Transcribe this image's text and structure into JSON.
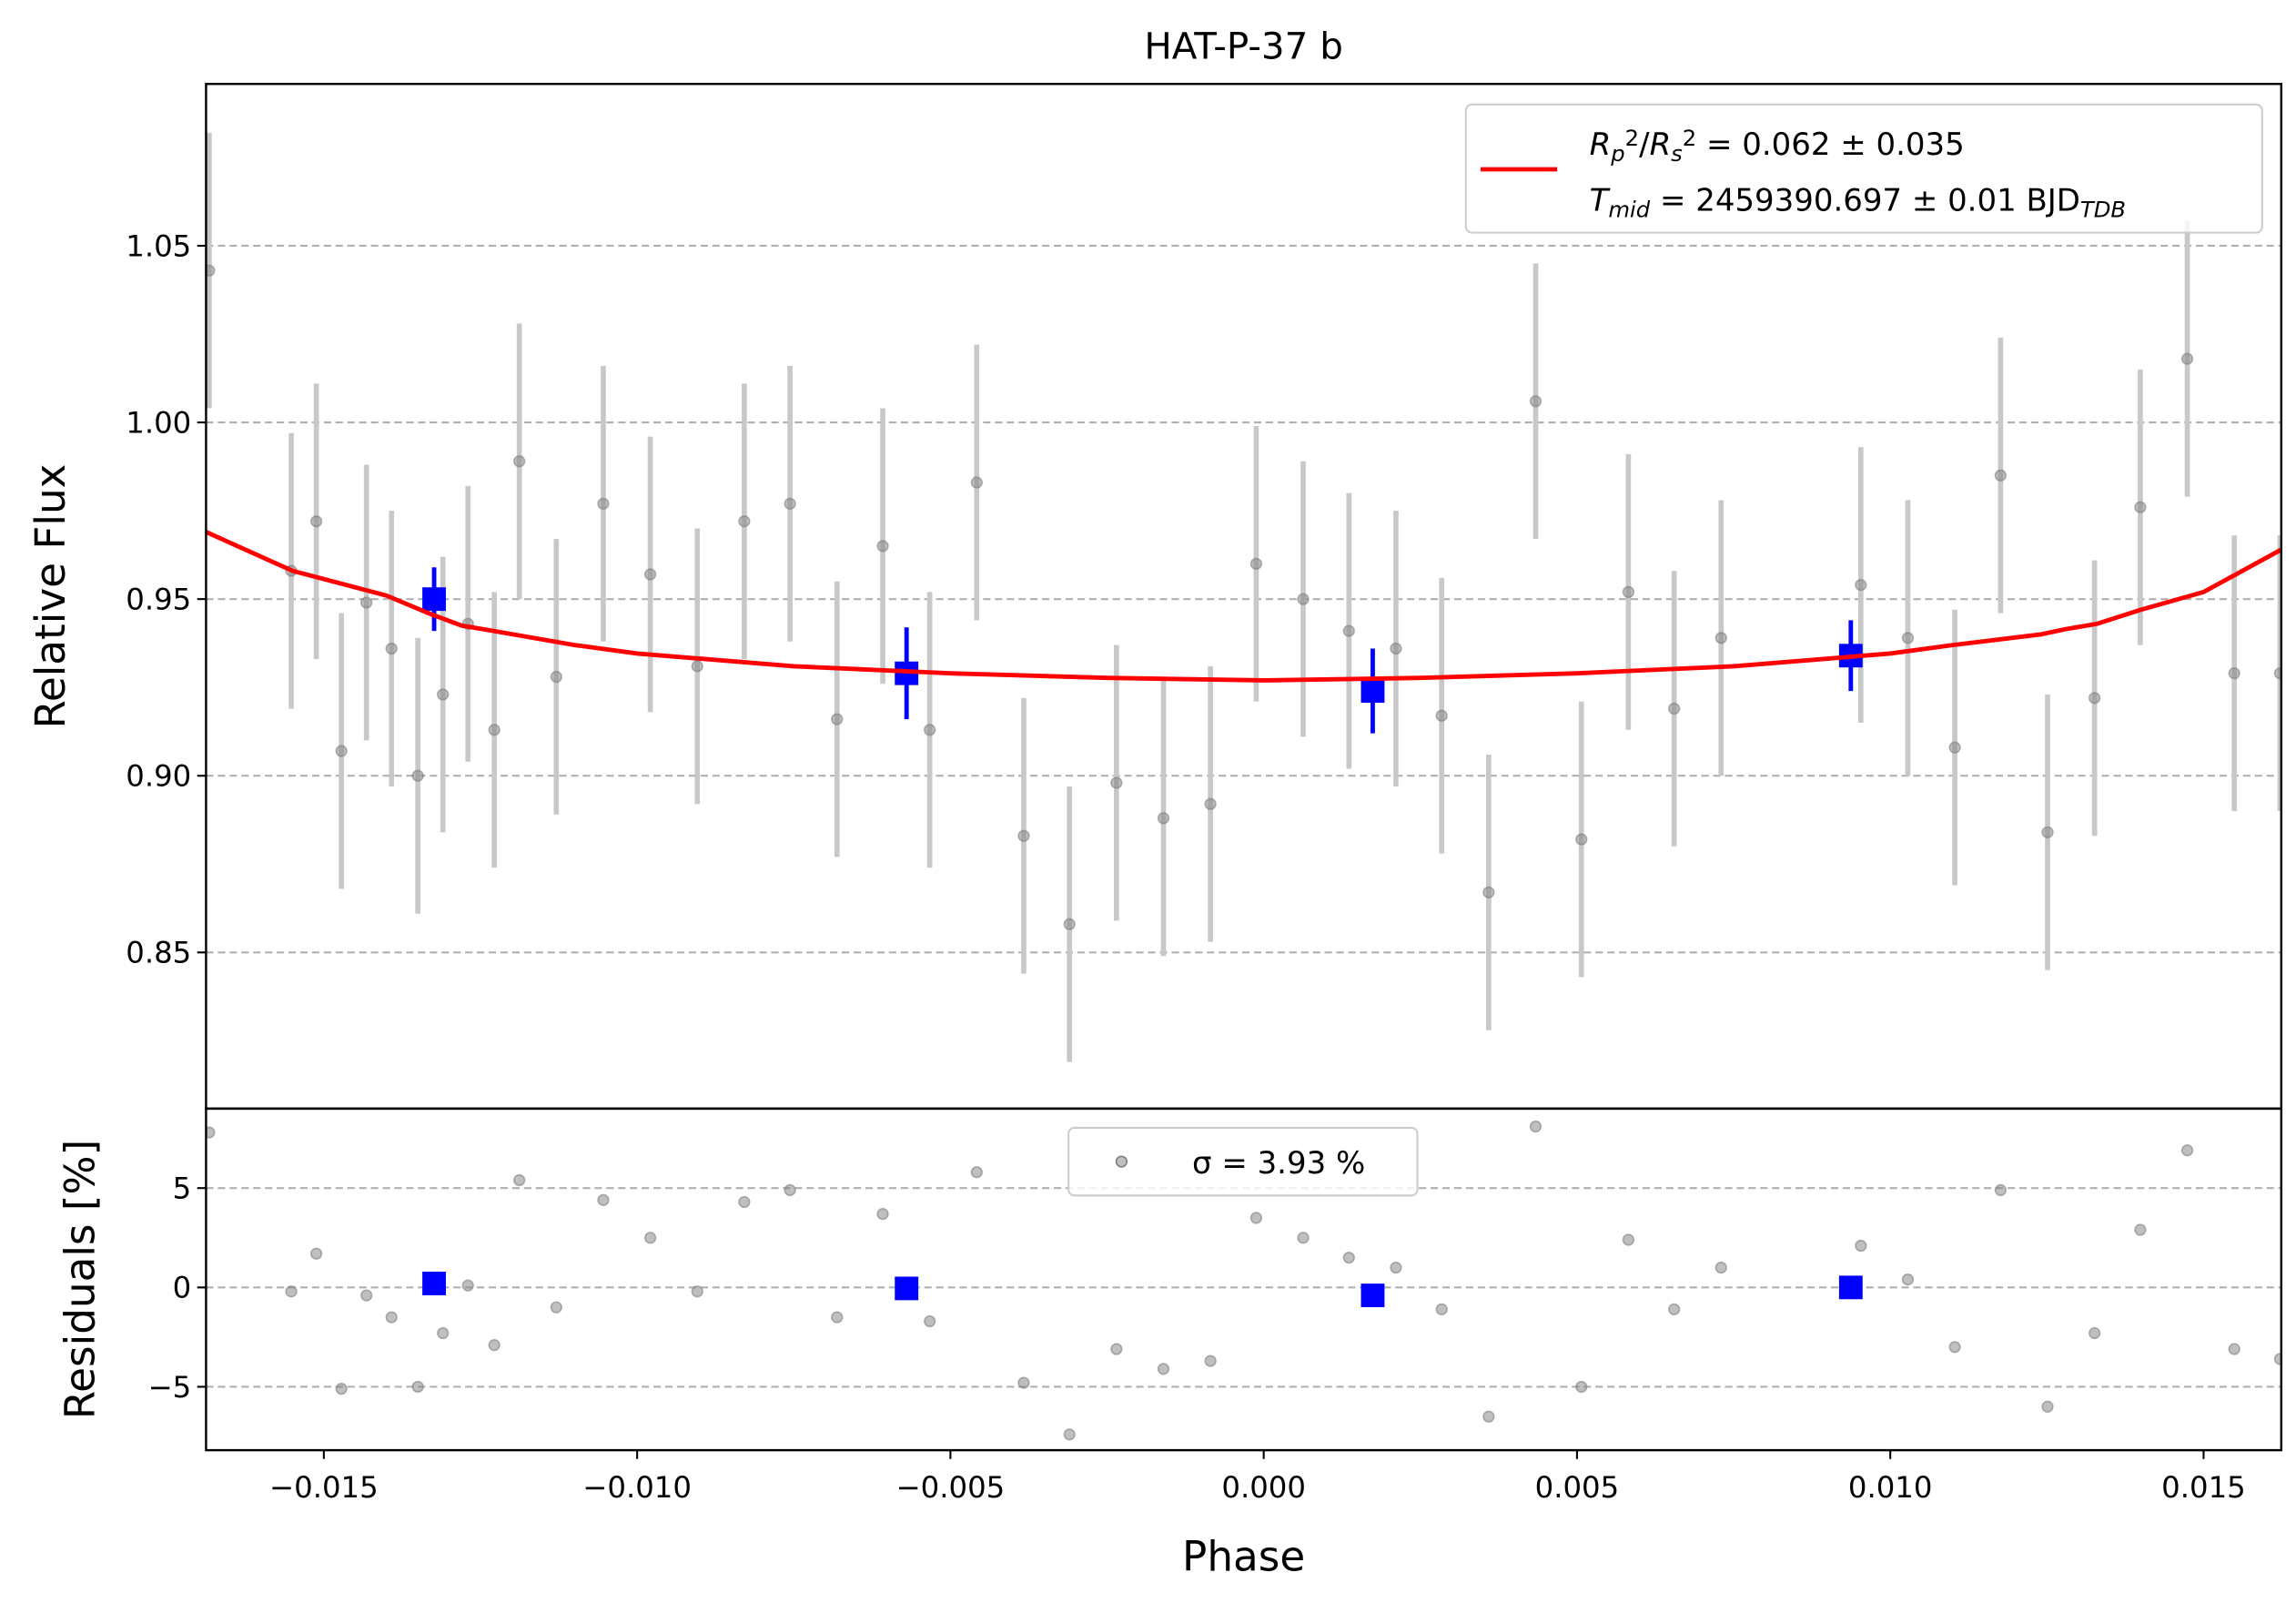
{
  "chart_data": [
    {
      "type": "scatter",
      "title": "HAT-P-37 b",
      "ylabel": "Relative Flux",
      "xlim": [
        -0.01688,
        0.01624
      ],
      "ylim": [
        0.8058,
        1.0958
      ],
      "yticks": [
        {
          "value": 0.85,
          "label": "0.85"
        },
        {
          "value": 0.9,
          "label": "0.90"
        },
        {
          "value": 0.95,
          "label": "0.95"
        },
        {
          "value": 1.0,
          "label": "1.00"
        },
        {
          "value": 1.05,
          "label": "1.05"
        }
      ],
      "grid": true,
      "legend": "upper right",
      "series": [
        {
          "color": "#808080",
          "x": [
            -0.01683,
            -0.01552,
            -0.01512,
            -0.01472,
            -0.01432,
            -0.01392,
            -0.0135,
            -0.0131,
            -0.0127,
            -0.01228,
            -0.01188,
            -0.01129,
            -0.01054,
            -0.00979,
            -0.00904,
            -0.00829,
            -0.00756,
            -0.00681,
            -0.00608,
            -0.00533,
            -0.00458,
            -0.00383,
            -0.0031,
            -0.00235,
            -0.0016,
            -0.00085,
            -0.00012,
            0.00063,
            0.00136,
            0.00211,
            0.00284,
            0.00359,
            0.00434,
            0.00507,
            0.00582,
            0.00655,
            0.0073,
            0.00953,
            0.01028,
            0.01103,
            0.01176,
            0.01251,
            0.01326,
            0.01399,
            0.01474,
            0.01549,
            0.01622
          ],
          "values": [
            1.043,
            0.958,
            0.972,
            0.907,
            0.949,
            0.936,
            0.9,
            0.923,
            0.943,
            0.913,
            0.989,
            0.928,
            0.977,
            0.957,
            0.931,
            0.972,
            0.977,
            0.916,
            0.965,
            0.913,
            0.983,
            0.883,
            0.858,
            0.898,
            0.888,
            0.892,
            0.96,
            0.95,
            0.941,
            0.936,
            0.917,
            0.867,
            1.006,
            0.882,
            0.952,
            0.919,
            0.939,
            0.954,
            0.939,
            0.908,
            0.985,
            0.884,
            0.922,
            0.976,
            1.018,
            0.929,
            0.929
          ],
          "errors": [
            0.039,
            0.039,
            0.039,
            0.039,
            0.039,
            0.039,
            0.039,
            0.039,
            0.039,
            0.039,
            0.039,
            0.039,
            0.039,
            0.039,
            0.039,
            0.039,
            0.039,
            0.039,
            0.039,
            0.039,
            0.039,
            0.039,
            0.039,
            0.039,
            0.039,
            0.039,
            0.039,
            0.039,
            0.039,
            0.039,
            0.039,
            0.039,
            0.039,
            0.039,
            0.039,
            0.039,
            0.039,
            0.039,
            0.039,
            0.039,
            0.039,
            0.039,
            0.039,
            0.039,
            0.039,
            0.039,
            0.039
          ]
        },
        {
          "color": "#0000ff",
          "x": [
            -0.01324,
            -0.0057,
            0.00174,
            0.00937
          ],
          "values": [
            0.95,
            0.929,
            0.924,
            0.934
          ],
          "errors": [
            0.009,
            0.013,
            0.012,
            0.01
          ]
        },
        {
          "type": "line",
          "color": "#ff0000",
          "name": [
            [
              {
                "text": "R",
                "style": "italic"
              },
              {
                "text": "p",
                "style": "sub"
              },
              {
                "text": "2",
                "style": "sup"
              },
              {
                "text": "/",
                "style": ""
              },
              {
                "text": "R",
                "style": "italic"
              },
              {
                "text": "s",
                "style": "sub"
              },
              {
                "text": "2",
                "style": "sup"
              },
              {
                "text": " = 0.062 ± 0.035",
                "style": ""
              }
            ],
            [
              {
                "text": "T",
                "style": "italic"
              },
              {
                "text": "mid",
                "style": "sub"
              },
              {
                "text": " = 2459390.697 ± 0.01 BJD",
                "style": ""
              },
              {
                "text": "TDB",
                "style": "sub"
              }
            ]
          ],
          "x": [
            -0.01688,
            -0.0155,
            -0.014,
            -0.0133,
            -0.0128,
            -0.0124,
            -0.011,
            -0.01,
            -0.0075,
            -0.005,
            -0.0025,
            0,
            0.0025,
            0.005,
            0.0075,
            0.01,
            0.011,
            0.0124,
            0.0128,
            0.0133,
            0.014,
            0.015,
            0.01624
          ],
          "values": [
            0.969,
            0.958,
            0.951,
            0.9458,
            0.9425,
            0.9413,
            0.937,
            0.9346,
            0.931,
            0.929,
            0.9277,
            0.927,
            0.9277,
            0.929,
            0.931,
            0.9346,
            0.937,
            0.94,
            0.9415,
            0.943,
            0.947,
            0.952,
            0.964
          ]
        }
      ]
    },
    {
      "type": "scatter",
      "xlabel": "Phase",
      "ylabel": "Residuals [%]",
      "xlim": [
        -0.01688,
        0.01624
      ],
      "ylim": [
        -8.19,
        9.0
      ],
      "xticks": [
        {
          "value": -0.015,
          "label": "−0.015"
        },
        {
          "value": -0.01,
          "label": "−0.010"
        },
        {
          "value": -0.005,
          "label": "−0.005"
        },
        {
          "value": 0,
          "label": "0.000"
        },
        {
          "value": 0.005,
          "label": "0.005"
        },
        {
          "value": 0.01,
          "label": "0.010"
        },
        {
          "value": 0.015,
          "label": "0.015"
        }
      ],
      "yticks": [
        {
          "value": -5,
          "label": "−5"
        },
        0,
        5
      ],
      "grid": true,
      "legend": "upper center",
      "series": [
        {
          "name": "σ = 3.93 %",
          "color": "#808080",
          "x": [
            -0.01683,
            -0.01552,
            -0.01512,
            -0.01472,
            -0.01432,
            -0.01392,
            -0.0135,
            -0.0131,
            -0.0127,
            -0.01228,
            -0.01188,
            -0.01129,
            -0.01054,
            -0.00979,
            -0.00904,
            -0.00829,
            -0.00756,
            -0.00681,
            -0.00608,
            -0.00533,
            -0.00458,
            -0.00383,
            -0.0031,
            -0.00235,
            -0.0016,
            -0.00085,
            -0.00012,
            0.00063,
            0.00136,
            0.00211,
            0.00284,
            0.00359,
            0.00434,
            0.00507,
            0.00582,
            0.00655,
            0.0073,
            0.00953,
            0.01028,
            0.01103,
            0.01176,
            0.01251,
            0.01326,
            0.01399,
            0.01474,
            0.01549,
            0.01622
          ],
          "values": [
            7.8,
            -0.2,
            1.7,
            -5.1,
            -0.4,
            -1.5,
            -5.0,
            -2.3,
            0.1,
            -2.9,
            5.4,
            -1.0,
            4.4,
            2.5,
            -0.2,
            4.3,
            4.9,
            -1.5,
            3.7,
            -1.7,
            5.8,
            -4.8,
            -7.4,
            -3.1,
            -4.1,
            -3.7,
            3.5,
            2.5,
            1.5,
            1.0,
            -1.1,
            -6.5,
            8.1,
            -5.0,
            2.4,
            -1.1,
            1.0,
            2.1,
            0.4,
            -3.0,
            4.9,
            -6.0,
            -2.3,
            2.9,
            6.9,
            -3.1,
            -3.6
          ]
        },
        {
          "color": "#0000ff",
          "x": [
            -0.01324,
            -0.0057,
            0.00174,
            0.00937
          ],
          "values": [
            0.2,
            -0.05,
            -0.4,
            0.0
          ]
        }
      ]
    }
  ]
}
